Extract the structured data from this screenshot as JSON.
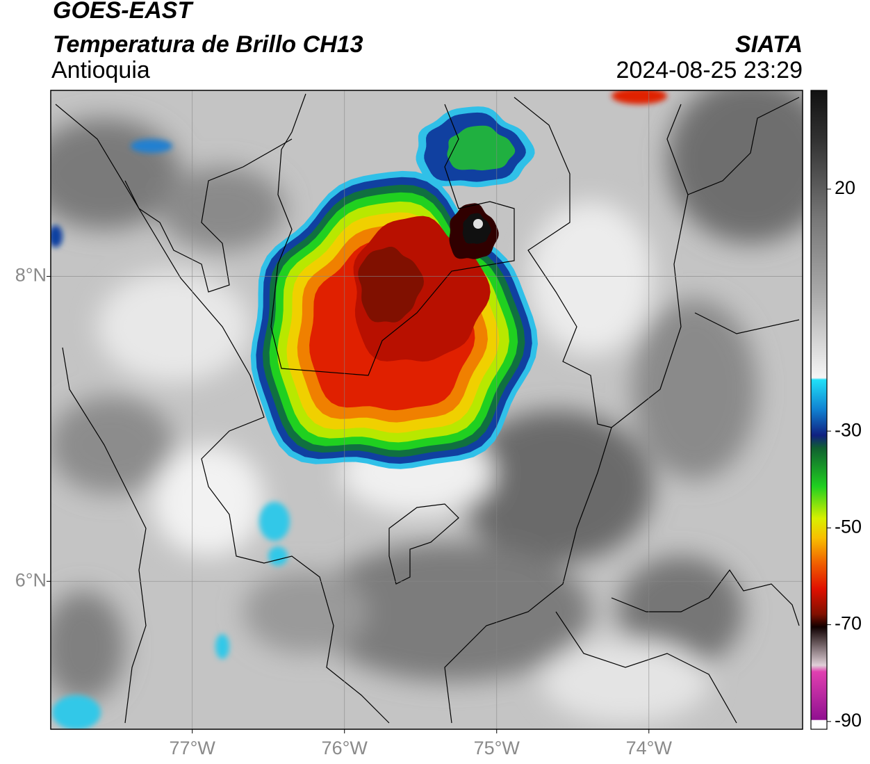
{
  "header": {
    "satellite": "GOES-EAST",
    "product": "Temperatura de Brillo CH13",
    "region": "Antioquia",
    "agency": "SIATA",
    "datetime": "2024-08-25 23:29"
  },
  "map": {
    "xlim": [
      -77.93,
      -72.99
    ],
    "ylim": [
      5.03,
      9.22
    ],
    "xticks": [
      {
        "value": -77,
        "label": "77°W"
      },
      {
        "value": -76,
        "label": "76°W"
      },
      {
        "value": -75,
        "label": "75°W"
      },
      {
        "value": -74,
        "label": "74°W"
      }
    ],
    "yticks": [
      {
        "value": 8,
        "label": "8°N"
      },
      {
        "value": 6,
        "label": "6°N"
      }
    ],
    "grid": true
  },
  "colorbar": {
    "lim": [
      -91.6,
      40.4
    ],
    "ticks": [
      20,
      -30,
      -50,
      -70,
      -90
    ]
  }
}
